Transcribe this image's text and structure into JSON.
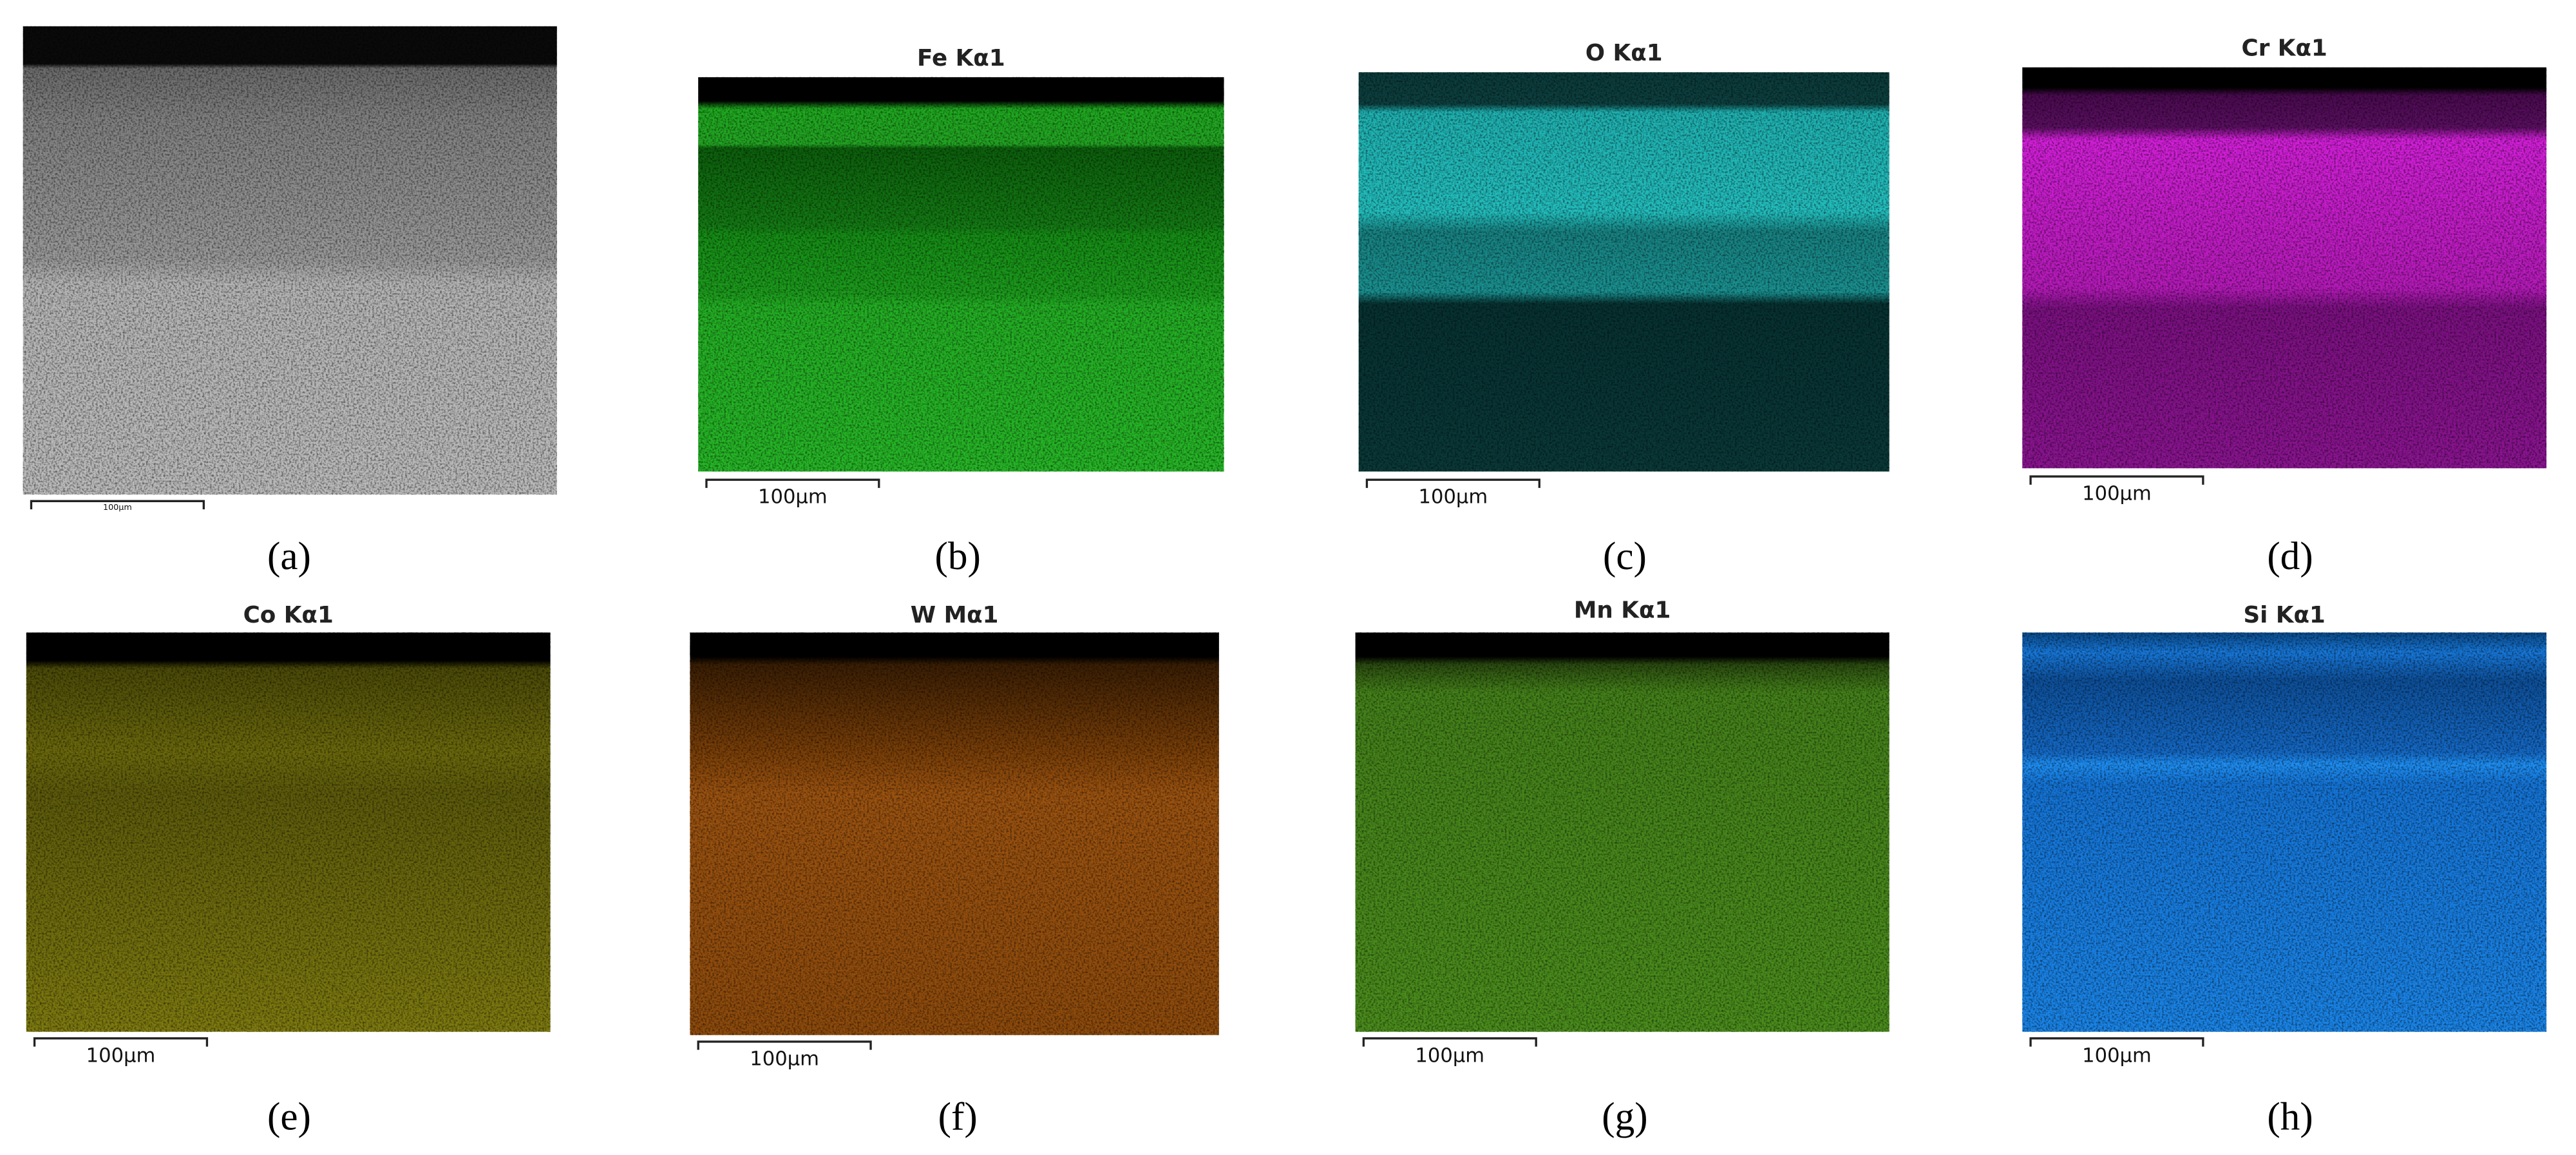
{
  "panels": [
    {
      "caption": "(a)",
      "scale_label": "100μm"
    },
    {
      "title": "Fe Kα1",
      "scale_label": "100μm",
      "caption": "(b)"
    },
    {
      "title": "O Kα1",
      "scale_label": "100μm",
      "caption": "(c)"
    },
    {
      "title": "Cr Kα1",
      "scale_label": "100μm",
      "caption": "(d)"
    },
    {
      "title": "Co Kα1",
      "scale_label": "100μm",
      "caption": "(e)"
    },
    {
      "title": "W Mα1",
      "scale_label": "100μm",
      "caption": "(f)"
    },
    {
      "title": "Mn Kα1",
      "scale_label": "100μm",
      "caption": "(g)"
    },
    {
      "title": "Si Kα1",
      "scale_label": "100μm",
      "caption": "(h)"
    }
  ]
}
